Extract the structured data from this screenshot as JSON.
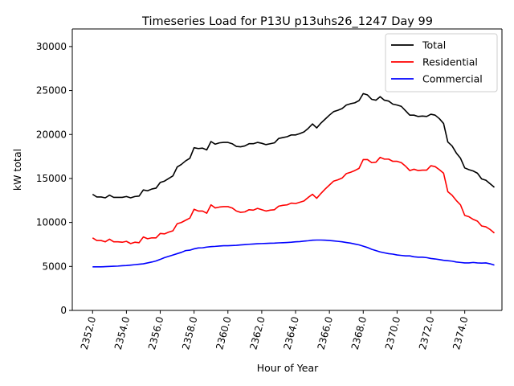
{
  "chart_data": {
    "type": "line",
    "title": "Timeseries Load for P13U p13uhs26_1247  Day 99",
    "xlabel": "Hour of Year",
    "ylabel": "kW total",
    "xlim": [
      2350.8,
      2376.2
    ],
    "ylim": [
      0,
      32000
    ],
    "xticks": [
      2352,
      2354,
      2356,
      2358,
      2360,
      2362,
      2364,
      2366,
      2368,
      2370,
      2372,
      2374
    ],
    "xtick_labels": [
      "2352.0",
      "2354.0",
      "2356.0",
      "2358.0",
      "2360.0",
      "2362.0",
      "2364.0",
      "2366.0",
      "2368.0",
      "2370.0",
      "2372.0",
      "2374.0"
    ],
    "yticks": [
      0,
      5000,
      10000,
      15000,
      20000,
      25000,
      30000
    ],
    "ytick_labels": [
      "0",
      "5000",
      "10000",
      "15000",
      "20000",
      "25000",
      "30000"
    ],
    "legend_position": "top-right",
    "x": [
      2352.0,
      2352.25,
      2352.5,
      2352.75,
      2353.0,
      2353.25,
      2353.5,
      2353.75,
      2354.0,
      2354.25,
      2354.5,
      2354.75,
      2355.0,
      2355.25,
      2355.5,
      2355.75,
      2356.0,
      2356.25,
      2356.5,
      2356.75,
      2357.0,
      2357.25,
      2357.5,
      2357.75,
      2358.0,
      2358.25,
      2358.5,
      2358.75,
      2359.0,
      2359.25,
      2359.5,
      2359.75,
      2360.0,
      2360.25,
      2360.5,
      2360.75,
      2361.0,
      2361.25,
      2361.5,
      2361.75,
      2362.0,
      2362.25,
      2362.5,
      2362.75,
      2363.0,
      2363.25,
      2363.5,
      2363.75,
      2364.0,
      2364.25,
      2364.5,
      2364.75,
      2365.0,
      2365.25,
      2365.5,
      2365.75,
      2366.0,
      2366.25,
      2366.5,
      2366.75,
      2367.0,
      2367.25,
      2367.5,
      2367.75,
      2368.0,
      2368.25,
      2368.5,
      2368.75,
      2369.0,
      2369.25,
      2369.5,
      2369.75,
      2370.0,
      2370.25,
      2370.5,
      2370.75,
      2371.0,
      2371.25,
      2371.5,
      2371.75,
      2372.0,
      2372.25,
      2372.5,
      2372.75,
      2373.0,
      2373.25,
      2373.5,
      2373.75,
      2374.0,
      2374.25,
      2374.5,
      2374.75,
      2375.0,
      2375.25,
      2375.5,
      2375.75
    ],
    "series": [
      {
        "name": "Total",
        "color": "#000000",
        "values": [
          13200,
          12900,
          12900,
          12800,
          13100,
          12850,
          12850,
          12850,
          12950,
          12800,
          12950,
          13000,
          13700,
          13600,
          13800,
          13900,
          14550,
          14700,
          15000,
          15300,
          16300,
          16600,
          17000,
          17300,
          18500,
          18400,
          18450,
          18250,
          19200,
          18900,
          19050,
          19100,
          19100,
          18950,
          18650,
          18600,
          18700,
          18950,
          18950,
          19100,
          19000,
          18850,
          18950,
          19050,
          19550,
          19650,
          19750,
          19950,
          19950,
          20100,
          20300,
          20700,
          21200,
          20750,
          21300,
          21750,
          22200,
          22600,
          22750,
          22950,
          23350,
          23500,
          23600,
          23850,
          24650,
          24500,
          24000,
          23900,
          24300,
          23900,
          23800,
          23450,
          23350,
          23200,
          22700,
          22200,
          22200,
          22050,
          22100,
          22050,
          22300,
          22200,
          21800,
          21250,
          19150,
          18700,
          17900,
          17300,
          16200,
          16000,
          15850,
          15600,
          14950,
          14800,
          14400,
          14000
        ]
      },
      {
        "name": "Residential",
        "color": "#ff0000",
        "values": [
          8250,
          7950,
          7950,
          7800,
          8100,
          7800,
          7800,
          7750,
          7850,
          7600,
          7750,
          7700,
          8350,
          8150,
          8250,
          8250,
          8750,
          8700,
          8900,
          9050,
          9850,
          10000,
          10250,
          10500,
          11500,
          11300,
          11300,
          11050,
          12000,
          11650,
          11750,
          11800,
          11800,
          11650,
          11300,
          11150,
          11200,
          11450,
          11400,
          11600,
          11450,
          11300,
          11400,
          11450,
          11850,
          11950,
          12000,
          12200,
          12150,
          12300,
          12450,
          12850,
          13200,
          12750,
          13300,
          13800,
          14250,
          14700,
          14850,
          15050,
          15550,
          15700,
          15900,
          16150,
          17150,
          17150,
          16800,
          16850,
          17400,
          17200,
          17200,
          16950,
          16950,
          16800,
          16400,
          15900,
          16050,
          15900,
          15950,
          15950,
          16450,
          16350,
          16000,
          15600,
          13500,
          13100,
          12500,
          12000,
          10800,
          10650,
          10350,
          10150,
          9600,
          9500,
          9200,
          8800
        ]
      },
      {
        "name": "Commercial",
        "color": "#0000ff",
        "values": [
          4950,
          4950,
          4950,
          4980,
          5000,
          5020,
          5040,
          5080,
          5100,
          5150,
          5200,
          5250,
          5300,
          5400,
          5500,
          5620,
          5800,
          6000,
          6150,
          6300,
          6450,
          6600,
          6800,
          6850,
          7000,
          7100,
          7120,
          7200,
          7250,
          7280,
          7320,
          7350,
          7350,
          7380,
          7400,
          7450,
          7480,
          7520,
          7550,
          7580,
          7600,
          7620,
          7640,
          7650,
          7680,
          7700,
          7720,
          7750,
          7800,
          7820,
          7880,
          7920,
          7980,
          8000,
          8000,
          7980,
          7950,
          7900,
          7850,
          7800,
          7720,
          7650,
          7550,
          7450,
          7300,
          7150,
          6950,
          6800,
          6650,
          6550,
          6450,
          6400,
          6300,
          6250,
          6200,
          6200,
          6100,
          6050,
          6050,
          6000,
          5900,
          5850,
          5780,
          5700,
          5650,
          5600,
          5500,
          5450,
          5400,
          5400,
          5450,
          5400,
          5380,
          5400,
          5300,
          5150
        ]
      }
    ]
  }
}
